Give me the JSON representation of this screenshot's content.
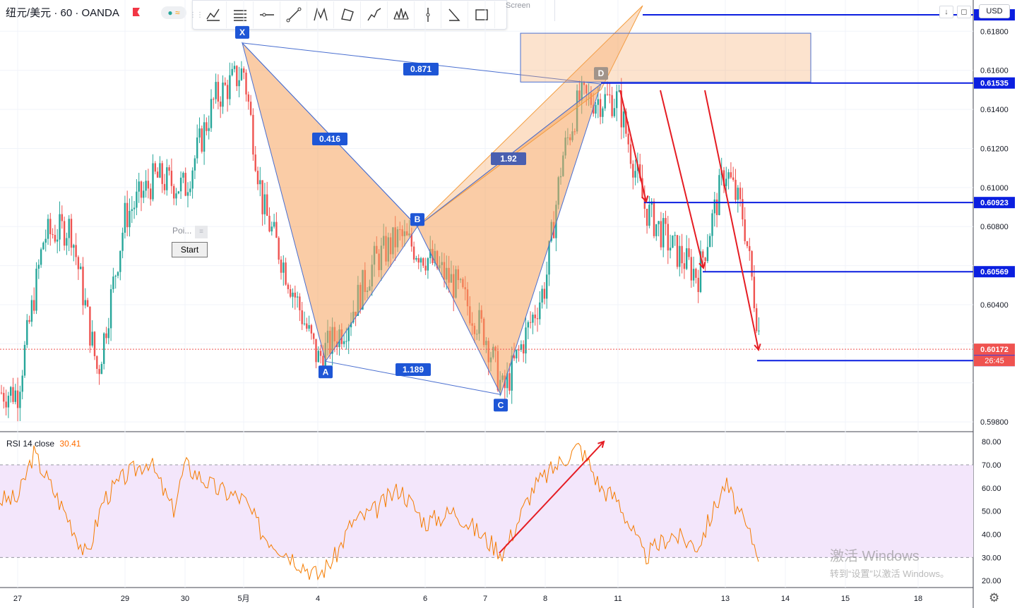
{
  "header": {
    "symbol": "纽元/美元 · 60 · OANDA",
    "status_dot": "●",
    "status_wave": "≈"
  },
  "toolbar": {
    "grip": "⋮⋮",
    "tools": [
      "xabcd-pattern-icon",
      "cypher-pattern-icon",
      "abcd-pattern-icon",
      "triangle-pattern-icon",
      "three-drives-icon",
      "elliott-wave-icon",
      "head-shoulders-icon",
      "abc-correction-icon",
      "vertical-line-icon",
      "trend-angle-icon",
      "rectangle-icon"
    ],
    "screen_label": "Screen"
  },
  "usd_button": "USD",
  "axis_buttons": [
    "↓",
    "◻"
  ],
  "overlay": {
    "poi_label": "Poi...",
    "poi_close": "≡",
    "start_button": "Start"
  },
  "rsi": {
    "label": "RSI 14 close",
    "value": "30.41"
  },
  "watermark": {
    "line1": "激活 Windows",
    "line2": "转到“设置”以激活 Windows。"
  },
  "settings_icon": "⚙",
  "colors": {
    "up": "#26a69a",
    "down": "#ef5350",
    "pattern_fill": "#f5a25d",
    "pattern_stroke": "#4a6fd0",
    "level": "#0b1fe0",
    "arrow": "#e51c23",
    "rsi_line": "#f57c00",
    "rsi_band": "#f3e6fb"
  },
  "chart_data": [
    {
      "type": "candlestick",
      "title": "",
      "symbol": "NZDUSD",
      "interval": "60",
      "y_axis_ticks": [
        "0.61800",
        "0.61600",
        "0.61400",
        "0.61200",
        "0.61000",
        "0.60800",
        "0.60400",
        "0.59800"
      ],
      "x_axis_ticks": [
        "27",
        "29",
        "30",
        "5月",
        "4",
        "6",
        "7",
        "8",
        "11",
        "13",
        "14",
        "15",
        "18"
      ],
      "ylim": [
        0.5975,
        0.6196
      ],
      "grid": true,
      "series_close_approx": [
        {
          "x": "27",
          "y": 0.5995
        },
        {
          "x": "27.5",
          "y": 0.6075
        },
        {
          "x": "28",
          "y": 0.608
        },
        {
          "x": "28.5",
          "y": 0.6005
        },
        {
          "x": "29",
          "y": 0.6085
        },
        {
          "x": "29.5",
          "y": 0.6105
        },
        {
          "x": "30",
          "y": 0.61
        },
        {
          "x": "30.5",
          "y": 0.6145
        },
        {
          "x": "5月",
          "y": 0.616
        },
        {
          "x": "1.5",
          "y": 0.609
        },
        {
          "x": "4",
          "y": 0.6012
        },
        {
          "x": "4.5",
          "y": 0.603
        },
        {
          "x": "5",
          "y": 0.6062
        },
        {
          "x": "5.5",
          "y": 0.6075
        },
        {
          "x": "6",
          "y": 0.6065
        },
        {
          "x": "6.5",
          "y": 0.605
        },
        {
          "x": "7",
          "y": 0.6025
        },
        {
          "x": "7.3",
          "y": 0.5995
        },
        {
          "x": "8",
          "y": 0.605
        },
        {
          "x": "8.5",
          "y": 0.6115
        },
        {
          "x": "9",
          "y": 0.6145
        },
        {
          "x": "11",
          "y": 0.6145
        },
        {
          "x": "11.5",
          "y": 0.609
        },
        {
          "x": "12",
          "y": 0.607
        },
        {
          "x": "12.5",
          "y": 0.6055
        },
        {
          "x": "13",
          "y": 0.611
        },
        {
          "x": "13.3",
          "y": 0.6085
        },
        {
          "x": "13.6",
          "y": 0.6017
        }
      ],
      "harmonic_pattern": {
        "points": {
          "X": 0.6174,
          "A": 0.6011,
          "B": 0.608,
          "C": 0.5994,
          "D": 0.6153
        },
        "ratios": {
          "XB": "0.416",
          "XD": "0.871",
          "AC": "1.189",
          "BD": "1.92"
        },
        "labels": [
          "X",
          "A",
          "B",
          "C",
          "D"
        ]
      },
      "prz_zone": [
        0.6154,
        0.6179
      ],
      "levels": [
        {
          "label": "0.61884",
          "value": 0.61884
        },
        {
          "label": "0.61535",
          "value": 0.61535
        },
        {
          "label": "0.60923",
          "value": 0.60923
        },
        {
          "label": "0.60569",
          "value": 0.60569
        },
        {
          "label": "0.60114",
          "value": 0.60114
        }
      ],
      "current_price": {
        "label": "0.60172",
        "value": 0.60172,
        "countdown": "26:45"
      }
    },
    {
      "type": "line",
      "title": "RSI 14 close",
      "y_axis_ticks": [
        "80.00",
        "70.00",
        "60.00",
        "50.00",
        "40.00",
        "30.00",
        "20.00"
      ],
      "ylim": [
        17,
        84
      ],
      "band": [
        30,
        70
      ],
      "values": [
        {
          "x": "27",
          "y": 55
        },
        {
          "x": "27.3",
          "y": 75
        },
        {
          "x": "27.6",
          "y": 62
        },
        {
          "x": "28",
          "y": 45
        },
        {
          "x": "28.3",
          "y": 30
        },
        {
          "x": "28.6",
          "y": 55
        },
        {
          "x": "29",
          "y": 65
        },
        {
          "x": "29.4",
          "y": 72
        },
        {
          "x": "29.8",
          "y": 50
        },
        {
          "x": "30",
          "y": 70
        },
        {
          "x": "30.5",
          "y": 60
        },
        {
          "x": "5月",
          "y": 55
        },
        {
          "x": "1.5",
          "y": 40
        },
        {
          "x": "4",
          "y": 22
        },
        {
          "x": "4.3",
          "y": 30
        },
        {
          "x": "4.6",
          "y": 45
        },
        {
          "x": "5",
          "y": 50
        },
        {
          "x": "5.5",
          "y": 60
        },
        {
          "x": "6",
          "y": 45
        },
        {
          "x": "6.5",
          "y": 50
        },
        {
          "x": "7",
          "y": 38
        },
        {
          "x": "7.3",
          "y": 32
        },
        {
          "x": "7.8",
          "y": 60
        },
        {
          "x": "8.5",
          "y": 72
        },
        {
          "x": "9",
          "y": 78
        },
        {
          "x": "9.5",
          "y": 70
        },
        {
          "x": "10",
          "y": 60
        },
        {
          "x": "11",
          "y": 55
        },
        {
          "x": "11.5",
          "y": 30
        },
        {
          "x": "12",
          "y": 40
        },
        {
          "x": "12.5",
          "y": 35
        },
        {
          "x": "13",
          "y": 62
        },
        {
          "x": "13.3",
          "y": 45
        },
        {
          "x": "13.6",
          "y": 30
        },
        {
          "x": "13.7",
          "y": 30.41
        }
      ]
    }
  ]
}
